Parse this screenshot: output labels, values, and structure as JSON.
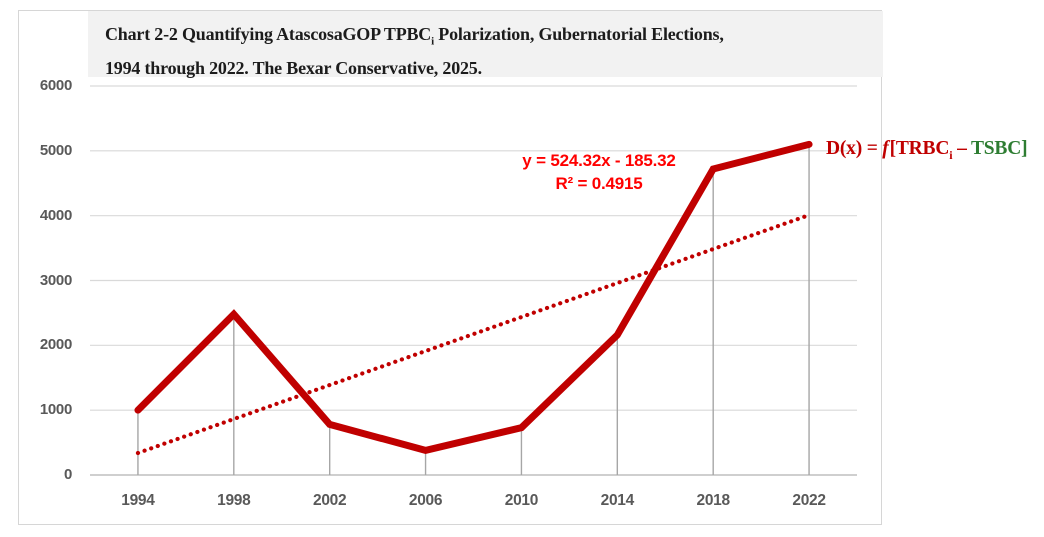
{
  "chart": {
    "title_line1_a": "Chart 2-2 Quantifying AtascosaGOP TPBC",
    "title_line1_sub": "i",
    "title_line1_b": " Polarization, Gubernatorial Elections,",
    "title_line2": "1994 through 2022. The Bexar Conservative, 2025.",
    "title_bg": "#f2f2f2"
  },
  "annotations": {
    "equation_line1": "y = 524.32x - 185.32",
    "equation_line2": "R² = 0.4915",
    "equation_color": "#ff0000",
    "dx_red1": "D(x) = ",
    "dx_f": "f",
    "dx_red2": "[TRBC",
    "dx_sub": "i",
    "dx_red3": " – ",
    "dx_green": "TSBC]",
    "dx_red_color": "#c00000",
    "dx_green_color": "#2e7d32"
  },
  "chart_data": {
    "type": "line",
    "title": "Chart 2-2 Quantifying AtascosaGOP TPBCi Polarization, Gubernatorial Elections, 1994 through 2022. The Bexar Conservative, 2025.",
    "categories": [
      "1994",
      "1998",
      "2002",
      "2006",
      "2010",
      "2014",
      "2018",
      "2022"
    ],
    "values": [
      1000,
      2480,
      780,
      380,
      730,
      2160,
      4720,
      5100
    ],
    "ylim": [
      0,
      6000
    ],
    "yticks": [
      0,
      1000,
      2000,
      3000,
      4000,
      5000,
      6000
    ],
    "xlabel": "",
    "ylabel": "",
    "grid": "horizontal",
    "legend": "none",
    "line_color": "#c00000",
    "drop_line_color": "#a6a6a6",
    "gridline_color": "#d9d9d9",
    "axis_line_color": "#bfbfbf",
    "trendline": {
      "style": "dotted",
      "color": "#c00000",
      "slope": 524.32,
      "intercept": -185.32,
      "r_squared": 0.4915,
      "x_index_domain": [
        1,
        8
      ]
    }
  }
}
